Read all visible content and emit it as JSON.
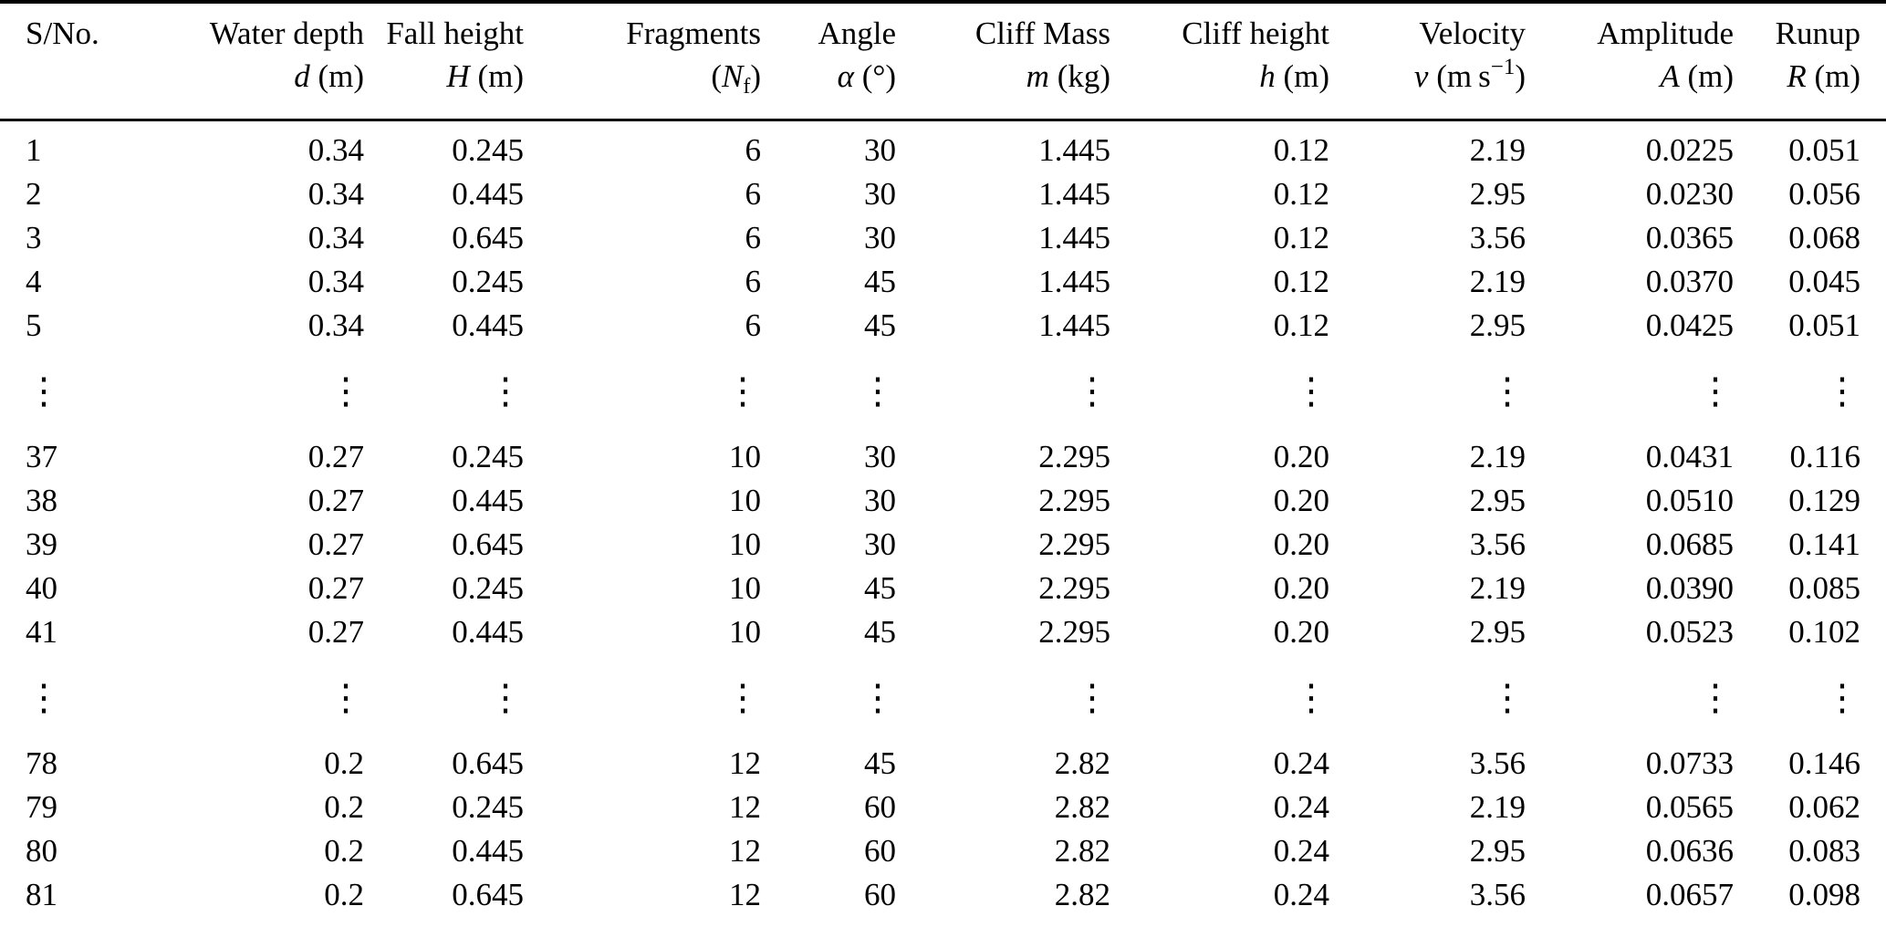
{
  "table": {
    "ellipsis_glyph": "⋮",
    "columns": [
      {
        "label": "S/No.",
        "pre": "",
        "sym": "",
        "sub": "",
        "mid": "",
        "sup": "",
        "post": ""
      },
      {
        "label": "Water depth",
        "pre": "",
        "sym": "d",
        "sub": "",
        "mid": " (m)",
        "sup": "",
        "post": ""
      },
      {
        "label": "Fall height",
        "pre": "",
        "sym": "H",
        "sub": "",
        "mid": " (m)",
        "sup": "",
        "post": ""
      },
      {
        "label": "Fragments",
        "pre": "(",
        "sym": "N",
        "sub": "f",
        "mid": ")",
        "sup": "",
        "post": ""
      },
      {
        "label": "Angle",
        "pre": "",
        "sym": "α",
        "sub": "",
        "mid": " (°)",
        "sup": "",
        "post": ""
      },
      {
        "label": "Cliff Mass",
        "pre": "",
        "sym": "m",
        "sub": "",
        "mid": " (kg)",
        "sup": "",
        "post": ""
      },
      {
        "label": "Cliff height",
        "pre": "",
        "sym": "h",
        "sub": "",
        "mid": " (m)",
        "sup": "",
        "post": ""
      },
      {
        "label": "Velocity",
        "pre": "",
        "sym": "v",
        "sub": "",
        "mid": " (m s",
        "sup": "−1",
        "post": ")"
      },
      {
        "label": "Amplitude",
        "pre": "",
        "sym": "A",
        "sub": "",
        "mid": " (m)",
        "sup": "",
        "post": ""
      },
      {
        "label": "Runup",
        "pre": "",
        "sym": "R",
        "sub": "",
        "mid": " (m)",
        "sup": "",
        "post": ""
      }
    ],
    "rows": [
      [
        "1",
        "0.34",
        "0.245",
        "6",
        "30",
        "1.445",
        "0.12",
        "2.19",
        "0.0225",
        "0.051"
      ],
      [
        "2",
        "0.34",
        "0.445",
        "6",
        "30",
        "1.445",
        "0.12",
        "2.95",
        "0.0230",
        "0.056"
      ],
      [
        "3",
        "0.34",
        "0.645",
        "6",
        "30",
        "1.445",
        "0.12",
        "3.56",
        "0.0365",
        "0.068"
      ],
      [
        "4",
        "0.34",
        "0.245",
        "6",
        "45",
        "1.445",
        "0.12",
        "2.19",
        "0.0370",
        "0.045"
      ],
      [
        "5",
        "0.34",
        "0.445",
        "6",
        "45",
        "1.445",
        "0.12",
        "2.95",
        "0.0425",
        "0.051"
      ],
      "dots",
      [
        "37",
        "0.27",
        "0.245",
        "10",
        "30",
        "2.295",
        "0.20",
        "2.19",
        "0.0431",
        "0.116"
      ],
      [
        "38",
        "0.27",
        "0.445",
        "10",
        "30",
        "2.295",
        "0.20",
        "2.95",
        "0.0510",
        "0.129"
      ],
      [
        "39",
        "0.27",
        "0.645",
        "10",
        "30",
        "2.295",
        "0.20",
        "3.56",
        "0.0685",
        "0.141"
      ],
      [
        "40",
        "0.27",
        "0.245",
        "10",
        "45",
        "2.295",
        "0.20",
        "2.19",
        "0.0390",
        "0.085"
      ],
      [
        "41",
        "0.27",
        "0.445",
        "10",
        "45",
        "2.295",
        "0.20",
        "2.95",
        "0.0523",
        "0.102"
      ],
      "dots",
      [
        "78",
        "0.2",
        "0.645",
        "12",
        "45",
        "2.82",
        "0.24",
        "3.56",
        "0.0733",
        "0.146"
      ],
      [
        "79",
        "0.2",
        "0.245",
        "12",
        "60",
        "2.82",
        "0.24",
        "2.19",
        "0.0565",
        "0.062"
      ],
      [
        "80",
        "0.2",
        "0.445",
        "12",
        "60",
        "2.82",
        "0.24",
        "2.95",
        "0.0636",
        "0.083"
      ],
      [
        "81",
        "0.2",
        "0.645",
        "12",
        "60",
        "2.82",
        "0.24",
        "3.56",
        "0.0657",
        "0.098"
      ]
    ]
  }
}
